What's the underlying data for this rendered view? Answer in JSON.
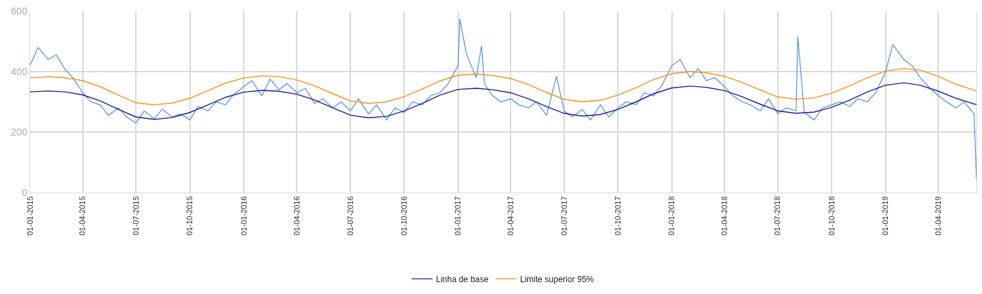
{
  "chart_data": {
    "type": "line",
    "xlim": [
      "2015-01-01",
      "2019-06-05"
    ],
    "xticks": [
      {
        "value": "2015-01-01",
        "label": "01-01-2015"
      },
      {
        "value": "2015-04-01",
        "label": "01-04-2015"
      },
      {
        "value": "2015-07-01",
        "label": "01-07-2015"
      },
      {
        "value": "2015-10-01",
        "label": "01-10-2015"
      },
      {
        "value": "2016-01-01",
        "label": "01-01-2016"
      },
      {
        "value": "2016-04-01",
        "label": "01-04-2016"
      },
      {
        "value": "2016-07-01",
        "label": "01-07-2016"
      },
      {
        "value": "2016-10-01",
        "label": "01-10-2016"
      },
      {
        "value": "2017-01-01",
        "label": "01-01-2017"
      },
      {
        "value": "2017-04-01",
        "label": "01-04-2017"
      },
      {
        "value": "2017-07-01",
        "label": "01-07-2017"
      },
      {
        "value": "2017-10-01",
        "label": "01-10-2017"
      },
      {
        "value": "2018-01-01",
        "label": "01-01-2018"
      },
      {
        "value": "2018-04-01",
        "label": "01-04-2018"
      },
      {
        "value": "2018-07-01",
        "label": "01-07-2018"
      },
      {
        "value": "2018-10-01",
        "label": "01-10-2018"
      },
      {
        "value": "2019-01-01",
        "label": "01-01-2019"
      },
      {
        "value": "2019-04-01",
        "label": "01-04-2019"
      }
    ],
    "ylim": [
      0,
      600
    ],
    "yticks": [
      0,
      200,
      400,
      600
    ],
    "grid": true,
    "legend": "bottom",
    "marker": "none",
    "line_style": "solid",
    "series": [
      {
        "color": "#4a90e2",
        "x": [
          "2015-01-01",
          "2015-01-15",
          "2015-02-01",
          "2015-02-15",
          "2015-03-01",
          "2015-03-15",
          "2015-04-01",
          "2015-04-15",
          "2015-05-01",
          "2015-05-15",
          "2015-06-01",
          "2015-06-15",
          "2015-07-01",
          "2015-07-15",
          "2015-08-01",
          "2015-08-15",
          "2015-09-01",
          "2015-09-15",
          "2015-10-01",
          "2015-10-15",
          "2015-11-01",
          "2015-11-15",
          "2015-12-01",
          "2015-12-15",
          "2016-01-01",
          "2016-01-15",
          "2016-02-01",
          "2016-02-15",
          "2016-03-01",
          "2016-03-15",
          "2016-04-01",
          "2016-04-15",
          "2016-05-01",
          "2016-05-15",
          "2016-06-01",
          "2016-06-15",
          "2016-07-01",
          "2016-07-15",
          "2016-08-01",
          "2016-08-15",
          "2016-09-01",
          "2016-09-15",
          "2016-10-01",
          "2016-10-15",
          "2016-11-01",
          "2016-11-15",
          "2016-12-01",
          "2016-12-15",
          "2017-01-01",
          "2017-01-04",
          "2017-01-15",
          "2017-02-01",
          "2017-02-10",
          "2017-02-15",
          "2017-03-01",
          "2017-03-15",
          "2017-04-01",
          "2017-04-15",
          "2017-05-01",
          "2017-05-15",
          "2017-06-01",
          "2017-06-18",
          "2017-07-01",
          "2017-07-15",
          "2017-08-01",
          "2017-08-15",
          "2017-09-01",
          "2017-09-15",
          "2017-10-01",
          "2017-10-15",
          "2017-11-01",
          "2017-11-15",
          "2017-12-01",
          "2017-12-15",
          "2018-01-01",
          "2018-01-15",
          "2018-02-01",
          "2018-02-15",
          "2018-03-01",
          "2018-03-15",
          "2018-04-01",
          "2018-04-15",
          "2018-05-01",
          "2018-05-15",
          "2018-06-01",
          "2018-06-15",
          "2018-07-01",
          "2018-07-15",
          "2018-08-01",
          "2018-08-04",
          "2018-08-15",
          "2018-09-01",
          "2018-09-15",
          "2018-10-01",
          "2018-10-15",
          "2018-11-01",
          "2018-11-15",
          "2018-12-01",
          "2018-12-15",
          "2019-01-01",
          "2019-01-13",
          "2019-02-01",
          "2019-02-15",
          "2019-03-01",
          "2019-03-15",
          "2019-04-01",
          "2019-04-15",
          "2019-05-01",
          "2019-05-15",
          "2019-06-01",
          "2019-06-05"
        ],
        "values": [
          420,
          480,
          440,
          455,
          410,
          380,
          330,
          300,
          290,
          255,
          280,
          250,
          230,
          270,
          245,
          275,
          250,
          260,
          240,
          285,
          270,
          300,
          290,
          325,
          350,
          370,
          320,
          375,
          340,
          360,
          330,
          345,
          295,
          310,
          280,
          300,
          270,
          310,
          260,
          290,
          240,
          280,
          265,
          300,
          290,
          320,
          330,
          360,
          420,
          575,
          460,
          380,
          485,
          360,
          320,
          300,
          310,
          290,
          280,
          300,
          255,
          385,
          270,
          250,
          275,
          240,
          290,
          250,
          280,
          300,
          290,
          330,
          320,
          355,
          420,
          440,
          380,
          410,
          370,
          380,
          350,
          320,
          300,
          290,
          270,
          310,
          260,
          280,
          270,
          515,
          265,
          240,
          280,
          290,
          300,
          285,
          310,
          300,
          330,
          400,
          490,
          440,
          420,
          380,
          350,
          320,
          300,
          280,
          300,
          260,
          45
        ]
      },
      {
        "name": "Linha de base",
        "color": "#1f1a9e",
        "x": [
          "2015-01-01",
          "2015-02-01",
          "2015-03-01",
          "2015-04-01",
          "2015-05-01",
          "2015-06-01",
          "2015-07-01",
          "2015-08-01",
          "2015-09-01",
          "2015-10-01",
          "2015-11-01",
          "2015-12-01",
          "2016-01-01",
          "2016-02-01",
          "2016-03-01",
          "2016-04-01",
          "2016-05-01",
          "2016-06-01",
          "2016-07-01",
          "2016-08-01",
          "2016-09-01",
          "2016-10-01",
          "2016-11-01",
          "2016-12-01",
          "2017-01-01",
          "2017-02-01",
          "2017-03-01",
          "2017-04-01",
          "2017-05-01",
          "2017-06-01",
          "2017-07-01",
          "2017-08-01",
          "2017-09-01",
          "2017-10-01",
          "2017-11-01",
          "2017-12-01",
          "2018-01-01",
          "2018-02-01",
          "2018-03-01",
          "2018-04-01",
          "2018-05-01",
          "2018-06-01",
          "2018-07-01",
          "2018-08-01",
          "2018-09-01",
          "2018-10-01",
          "2018-11-01",
          "2018-12-01",
          "2019-01-01",
          "2019-02-01",
          "2019-03-01",
          "2019-04-01",
          "2019-05-01",
          "2019-06-01",
          "2019-06-05"
        ],
        "values": [
          333,
          336,
          333,
          323,
          303,
          275,
          250,
          242,
          248,
          265,
          290,
          315,
          332,
          338,
          335,
          325,
          306,
          280,
          256,
          247,
          252,
          270,
          295,
          322,
          341,
          345,
          340,
          330,
          310,
          284,
          262,
          253,
          258,
          275,
          300,
          327,
          346,
          352,
          348,
          337,
          317,
          292,
          270,
          262,
          266,
          282,
          306,
          333,
          355,
          363,
          355,
          335,
          312,
          293,
          291
        ]
      },
      {
        "name": "Limite superior 95%",
        "color": "#ff8c1a",
        "x": [
          "2015-01-01",
          "2015-02-01",
          "2015-03-01",
          "2015-04-01",
          "2015-05-01",
          "2015-06-01",
          "2015-07-01",
          "2015-08-01",
          "2015-09-01",
          "2015-10-01",
          "2015-11-01",
          "2015-12-01",
          "2016-01-01",
          "2016-02-01",
          "2016-03-01",
          "2016-04-01",
          "2016-05-01",
          "2016-06-01",
          "2016-07-01",
          "2016-08-01",
          "2016-09-01",
          "2016-10-01",
          "2016-11-01",
          "2016-12-01",
          "2017-01-01",
          "2017-02-01",
          "2017-03-01",
          "2017-04-01",
          "2017-05-01",
          "2017-06-01",
          "2017-07-01",
          "2017-08-01",
          "2017-09-01",
          "2017-10-01",
          "2017-11-01",
          "2017-12-01",
          "2018-01-01",
          "2018-02-01",
          "2018-03-01",
          "2018-04-01",
          "2018-05-01",
          "2018-06-01",
          "2018-07-01",
          "2018-08-01",
          "2018-09-01",
          "2018-10-01",
          "2018-11-01",
          "2018-12-01",
          "2019-01-01",
          "2019-02-01",
          "2019-03-01",
          "2019-04-01",
          "2019-05-01",
          "2019-06-01",
          "2019-06-05"
        ],
        "values": [
          379,
          383,
          380,
          370,
          350,
          322,
          297,
          290,
          296,
          312,
          337,
          362,
          379,
          386,
          383,
          372,
          353,
          327,
          303,
          295,
          300,
          317,
          342,
          369,
          388,
          392,
          387,
          377,
          357,
          331,
          308,
          300,
          305,
          322,
          347,
          374,
          393,
          400,
          396,
          384,
          364,
          339,
          316,
          309,
          313,
          329,
          353,
          380,
          402,
          410,
          405,
          384,
          358,
          339,
          335
        ]
      }
    ]
  }
}
